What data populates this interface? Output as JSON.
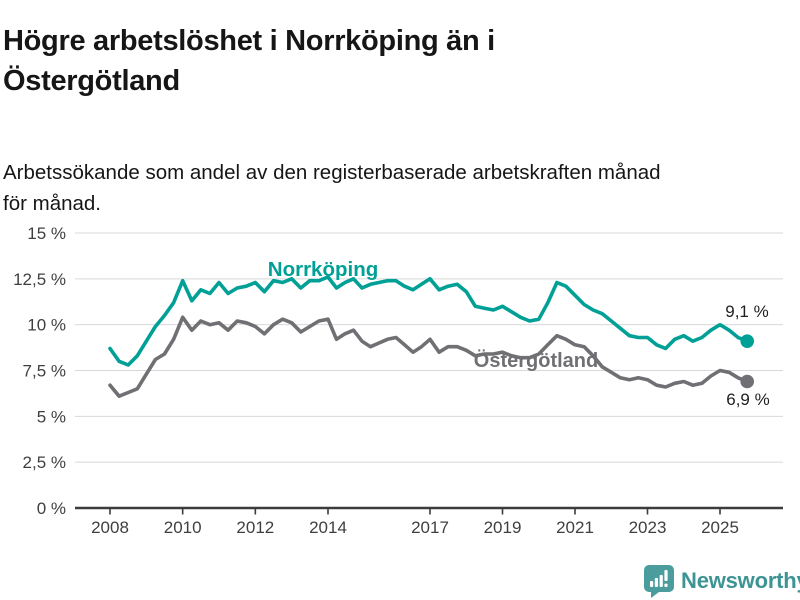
{
  "header": {
    "title": "Högre arbetslöshet i Norrköping än i Östergötland",
    "title_lines": [
      "Högre arbetslöshet i Norrköping än i",
      "Östergötland"
    ],
    "subtitle": "Arbetssökande som andel av den registerbaserade arbetskraften månad för månad.",
    "subtitle_lines": [
      "Arbetssökande som andel av den registerbaserade arbetskraften månad",
      "för månad."
    ]
  },
  "footer": {
    "brand": "Newsworthy",
    "brand_color": "#3e9494",
    "logo_icon": "bar-chart-speech-bubble-icon",
    "logo_color": "#4b9d9d"
  },
  "chart_data": {
    "type": "line",
    "unit": "%",
    "grid": "horizontal",
    "legend_position": "inline-labels",
    "ylim": [
      0,
      15
    ],
    "x_start_year": 2008.0,
    "x_step_years": 0.25,
    "x_end_year": 2025.75,
    "y_ticks": [
      {
        "value": 0,
        "label": "0 %"
      },
      {
        "value": 2.5,
        "label": "2,5 %"
      },
      {
        "value": 5,
        "label": "5 %"
      },
      {
        "value": 7.5,
        "label": "7,5 %"
      },
      {
        "value": 10,
        "label": "10 %"
      },
      {
        "value": 12.5,
        "label": "12,5 %"
      },
      {
        "value": 15,
        "label": "15 %"
      }
    ],
    "x_ticks": [
      {
        "year": 2008,
        "label": "2008"
      },
      {
        "year": 2010,
        "label": "2010"
      },
      {
        "year": 2012,
        "label": "2012"
      },
      {
        "year": 2014,
        "label": "2014"
      },
      {
        "year": 2017,
        "label": "2017"
      },
      {
        "year": 2019,
        "label": "2019"
      },
      {
        "year": 2021,
        "label": "2021"
      },
      {
        "year": 2023,
        "label": "2023"
      },
      {
        "year": 2025,
        "label": "2025"
      }
    ],
    "series": [
      {
        "name": "Norrköping",
        "color": "#00a096",
        "end_label": "9,1 %",
        "end_value": 9.1,
        "values": [
          8.7,
          8.0,
          7.8,
          8.3,
          9.1,
          9.9,
          10.5,
          11.2,
          12.4,
          11.3,
          11.9,
          11.7,
          12.3,
          11.7,
          12.0,
          12.1,
          12.3,
          11.8,
          12.4,
          12.3,
          12.5,
          12.0,
          12.4,
          12.4,
          12.6,
          12.0,
          12.3,
          12.5,
          12.0,
          12.2,
          12.3,
          12.4,
          12.4,
          12.1,
          11.9,
          12.2,
          12.5,
          11.9,
          12.1,
          12.2,
          11.8,
          11.0,
          10.9,
          10.8,
          11.0,
          10.7,
          10.4,
          10.2,
          10.3,
          11.2,
          12.3,
          12.1,
          11.6,
          11.1,
          10.8,
          10.6,
          10.2,
          9.8,
          9.4,
          9.3,
          9.3,
          8.9,
          8.7,
          9.2,
          9.4,
          9.1,
          9.3,
          9.7,
          10.0,
          9.7,
          9.3,
          9.1
        ]
      },
      {
        "name": "Östergötland",
        "color": "#707074",
        "end_label": "6,9 %",
        "end_value": 6.9,
        "values": [
          6.7,
          6.1,
          6.3,
          6.5,
          7.3,
          8.1,
          8.4,
          9.2,
          10.4,
          9.7,
          10.2,
          10.0,
          10.1,
          9.7,
          10.2,
          10.1,
          9.9,
          9.5,
          10.0,
          10.3,
          10.1,
          9.6,
          9.9,
          10.2,
          10.3,
          9.2,
          9.5,
          9.7,
          9.1,
          8.8,
          9.0,
          9.2,
          9.3,
          8.9,
          8.5,
          8.8,
          9.2,
          8.5,
          8.8,
          8.8,
          8.6,
          8.3,
          8.4,
          8.4,
          8.5,
          8.3,
          8.2,
          8.2,
          8.4,
          8.9,
          9.4,
          9.2,
          8.9,
          8.8,
          8.3,
          7.7,
          7.4,
          7.1,
          7.0,
          7.1,
          7.0,
          6.7,
          6.6,
          6.8,
          6.9,
          6.7,
          6.8,
          7.2,
          7.5,
          7.4,
          7.1,
          6.9
        ]
      }
    ]
  }
}
